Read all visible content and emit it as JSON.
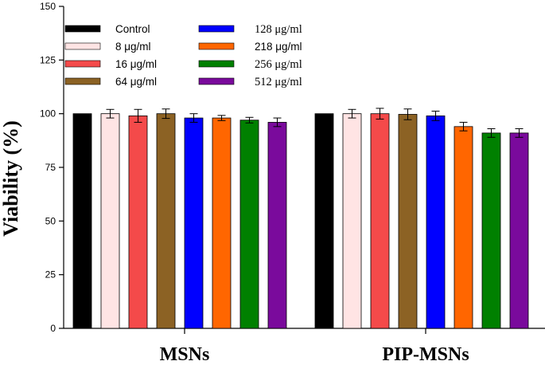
{
  "chart_data": {
    "type": "bar",
    "ylabel": "Viability (%)",
    "ylim": [
      0,
      150
    ],
    "yticks": [
      0,
      25,
      50,
      75,
      100,
      125,
      150
    ],
    "categories": [
      "MSNs",
      "PIP-MSNs"
    ],
    "legend_placement": "top-left",
    "grid": false,
    "series": [
      {
        "name": "Control",
        "color": "#000000",
        "values": [
          100,
          100
        ],
        "errors": [
          0,
          0
        ]
      },
      {
        "name": "8 μg/ml",
        "color": "#FFE4E4",
        "values": [
          100,
          100
        ],
        "errors": [
          2,
          2
        ]
      },
      {
        "name": "16 μg/ml",
        "color": "#F44A4A",
        "values": [
          99,
          100
        ],
        "errors": [
          3,
          2.5
        ]
      },
      {
        "name": "64 μg/ml",
        "color": "#8C6224",
        "values": [
          100,
          99.7
        ],
        "errors": [
          2.2,
          2.5
        ]
      },
      {
        "name": "128 μg/ml",
        "color": "#0000FF",
        "values": [
          98,
          99
        ],
        "errors": [
          2,
          2.2
        ]
      },
      {
        "name": "218 μg/ml",
        "color": "#FF6600",
        "values": [
          98,
          94
        ],
        "errors": [
          1.2,
          2
        ]
      },
      {
        "name": "256 μg/ml",
        "color": "#008000",
        "values": [
          97,
          91
        ],
        "errors": [
          1.3,
          2
        ]
      },
      {
        "name": "512 μg/ml",
        "color": "#7A0A9C",
        "values": [
          96,
          91
        ],
        "errors": [
          2,
          2
        ]
      }
    ]
  }
}
